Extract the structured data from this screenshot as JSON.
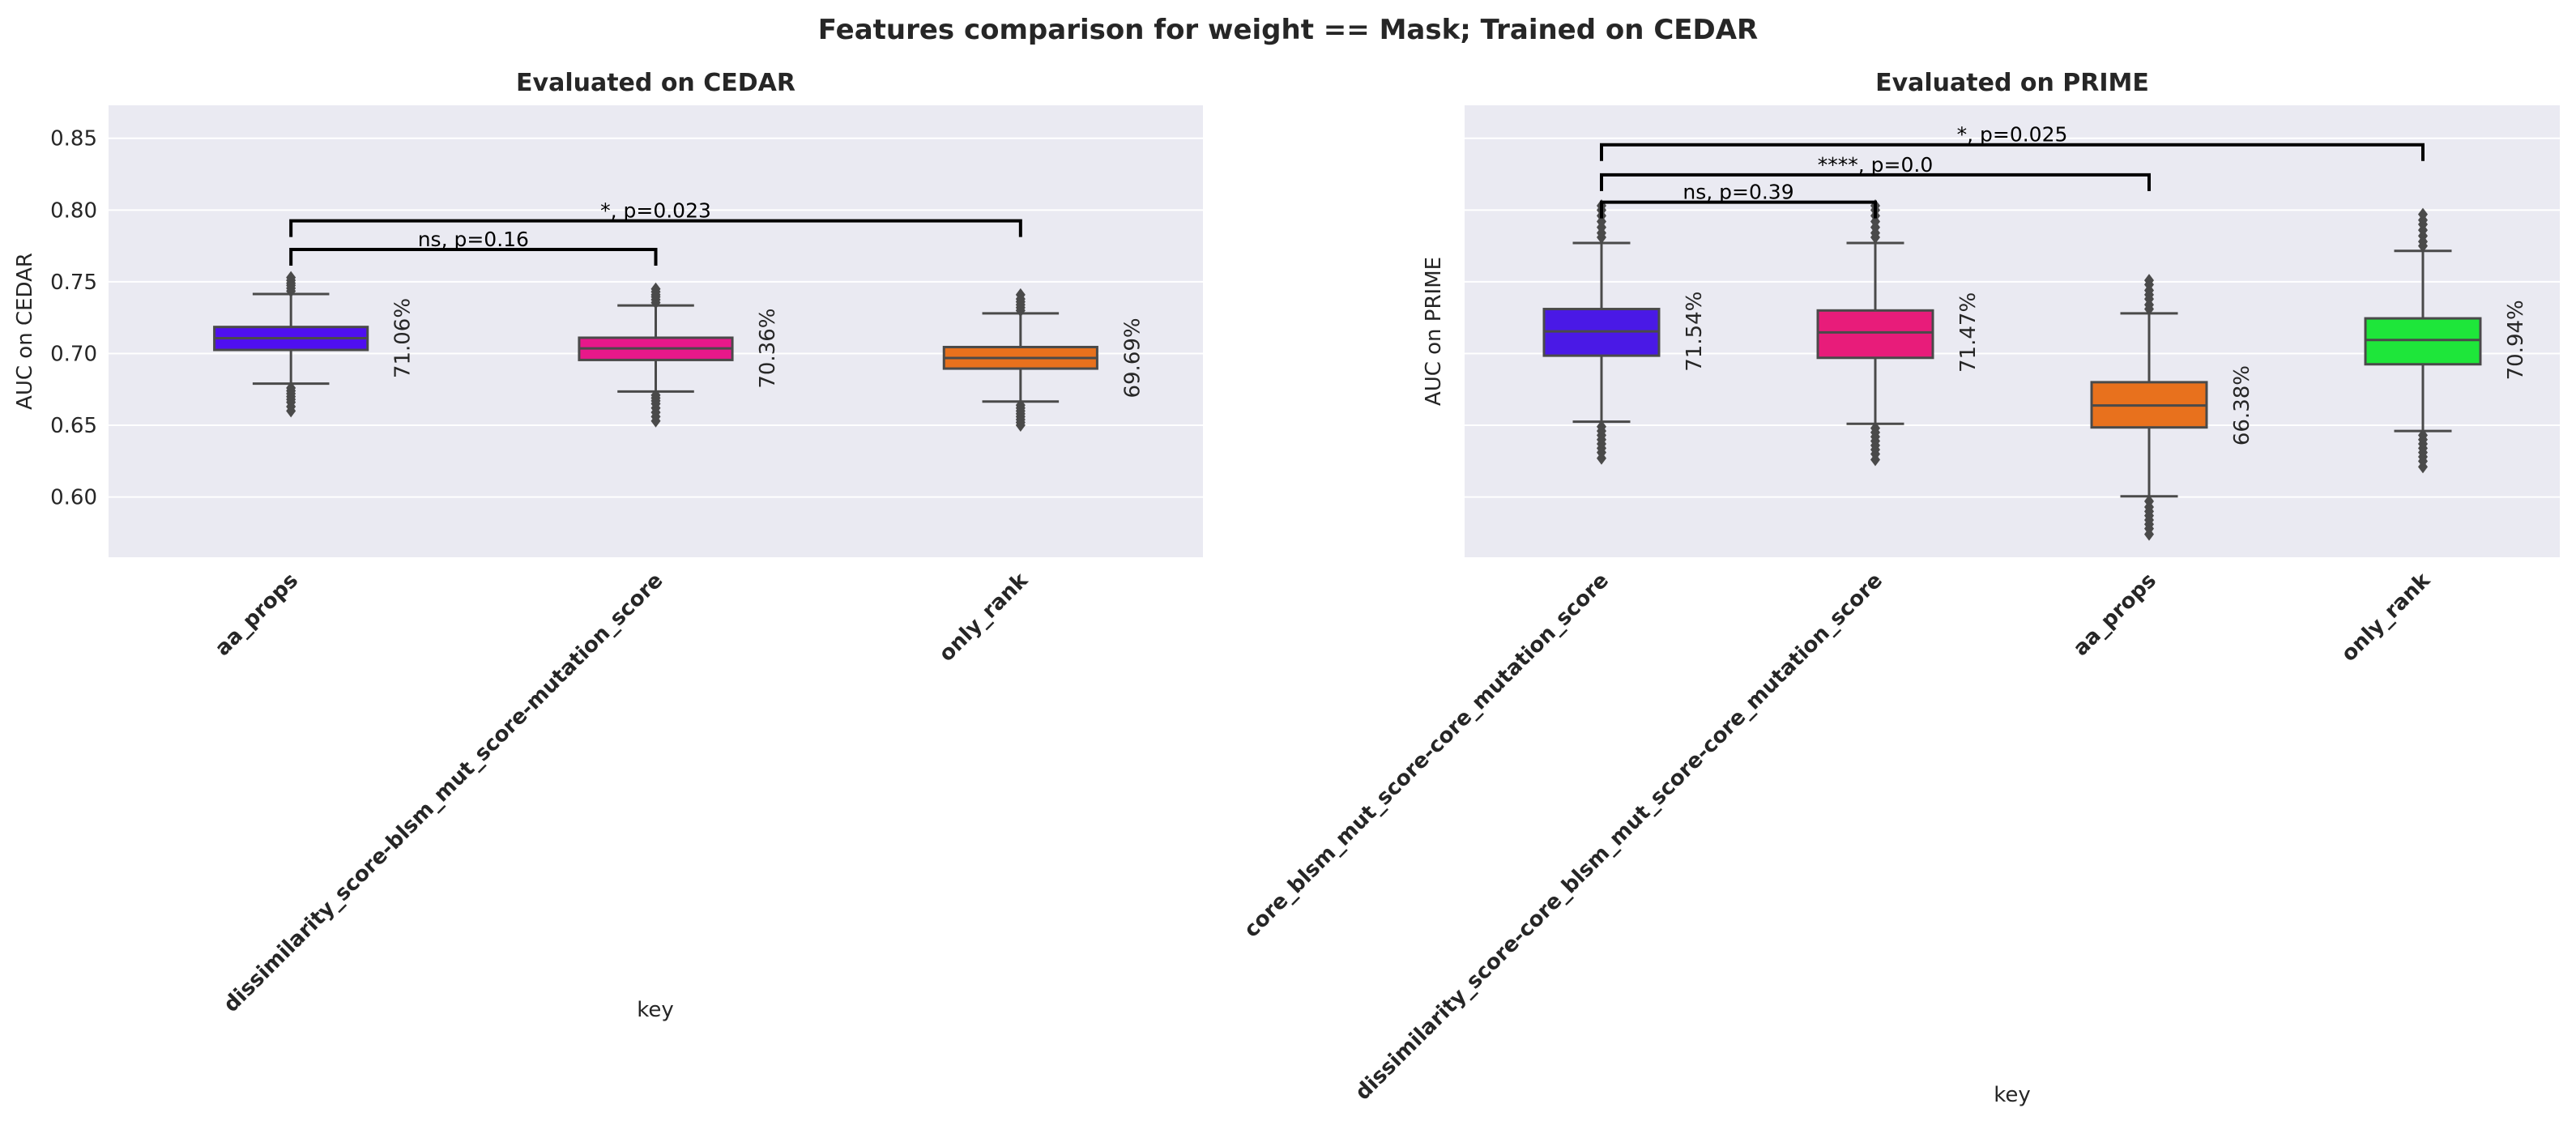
{
  "figure": {
    "suptitle": "Features comparison for weight == Mask; Trained on CEDAR"
  },
  "chart_data": [
    {
      "type": "box",
      "title": "Evaluated on CEDAR",
      "xlabel": "key",
      "ylabel": "AUC on CEDAR",
      "ylim": [
        0.558,
        0.873
      ],
      "yticks": [
        0.6,
        0.65,
        0.7,
        0.75,
        0.8,
        0.85
      ],
      "ytick_labels": [
        "0.60",
        "0.65",
        "0.70",
        "0.75",
        "0.80",
        "0.85"
      ],
      "grid": true,
      "categories": [
        "aa_props",
        "dissimilarity_score-blsm_mut_score-mutation_score",
        "only_rank"
      ],
      "boxes": [
        {
          "key": "aa_props",
          "color": "#4f0ff0",
          "q1": 0.7025,
          "median": 0.7107,
          "q3": 0.7185,
          "whisker_low": 0.679,
          "whisker_high": 0.7415,
          "fliers": [
            0.676,
            0.674,
            0.672,
            0.67,
            0.668,
            0.666,
            0.663,
            0.66,
            0.7435,
            0.7455,
            0.7475,
            0.749,
            0.751,
            0.753
          ],
          "label": "71.06%"
        },
        {
          "key": "dissimilarity_score-blsm_mut_score-mutation_score",
          "color": "#e8188a",
          "q1": 0.6955,
          "median": 0.7036,
          "q3": 0.711,
          "whisker_low": 0.6735,
          "whisker_high": 0.7335,
          "fliers": [
            0.671,
            0.669,
            0.667,
            0.665,
            0.662,
            0.659,
            0.656,
            0.653,
            0.7355,
            0.7375,
            0.7395,
            0.741,
            0.743,
            0.745
          ],
          "label": "70.36%"
        },
        {
          "key": "only_rank",
          "color": "#e8711d",
          "q1": 0.6895,
          "median": 0.6969,
          "q3": 0.7045,
          "whisker_low": 0.6665,
          "whisker_high": 0.728,
          "fliers": [
            0.664,
            0.662,
            0.66,
            0.658,
            0.656,
            0.654,
            0.652,
            0.65,
            0.73,
            0.732,
            0.734,
            0.736,
            0.738,
            0.741
          ],
          "label": "69.69%"
        }
      ],
      "annotations": [
        {
          "text": "ns, p=0.16",
          "from": 0,
          "to": 1,
          "y": 0.7725
        },
        {
          "text": "*, p=0.023",
          "from": 0,
          "to": 2,
          "y": 0.7925
        }
      ]
    },
    {
      "type": "box",
      "title": "Evaluated on PRIME",
      "xlabel": "key",
      "ylabel": "AUC on PRIME",
      "ylim": [
        0.558,
        0.873
      ],
      "yticks": [
        0.6,
        0.65,
        0.7,
        0.75,
        0.8,
        0.85
      ],
      "ytick_labels": [],
      "grid": true,
      "categories": [
        "core_blsm_mut_score-core_mutation_score",
        "dissimilarity_score-core_blsm_mut_score-core_mutation_score",
        "aa_props",
        "only_rank"
      ],
      "boxes": [
        {
          "key": "core_blsm_mut_score-core_mutation_score",
          "color": "#4a19e6",
          "q1": 0.6985,
          "median": 0.7154,
          "q3": 0.731,
          "whisker_low": 0.6525,
          "whisker_high": 0.777,
          "fliers": [
            0.649,
            0.646,
            0.643,
            0.64,
            0.637,
            0.634,
            0.631,
            0.627,
            0.781,
            0.784,
            0.788,
            0.792,
            0.796,
            0.8,
            0.803
          ],
          "label": "71.54%"
        },
        {
          "key": "dissimilarity_score-core_blsm_mut_score-core_mutation_score",
          "color": "#e81c7a",
          "q1": 0.697,
          "median": 0.7147,
          "q3": 0.73,
          "whisker_low": 0.651,
          "whisker_high": 0.777,
          "fliers": [
            0.648,
            0.645,
            0.642,
            0.639,
            0.636,
            0.633,
            0.63,
            0.626,
            0.781,
            0.784,
            0.788,
            0.792,
            0.796,
            0.8,
            0.803
          ],
          "label": "71.47%"
        },
        {
          "key": "aa_props",
          "color": "#e8711d",
          "q1": 0.6485,
          "median": 0.6638,
          "q3": 0.68,
          "whisker_low": 0.6005,
          "whisker_high": 0.728,
          "fliers": [
            0.597,
            0.593,
            0.59,
            0.587,
            0.584,
            0.581,
            0.578,
            0.574,
            0.731,
            0.734,
            0.738,
            0.741,
            0.744,
            0.748,
            0.751
          ],
          "label": "66.38%"
        },
        {
          "key": "only_rank",
          "color": "#1ee63a",
          "q1": 0.6925,
          "median": 0.7094,
          "q3": 0.7245,
          "whisker_low": 0.646,
          "whisker_high": 0.7715,
          "fliers": [
            0.643,
            0.64,
            0.637,
            0.634,
            0.631,
            0.628,
            0.625,
            0.621,
            0.775,
            0.778,
            0.782,
            0.786,
            0.79,
            0.793,
            0.797
          ],
          "label": "70.94%"
        }
      ],
      "annotations": [
        {
          "text": "ns, p=0.39",
          "from": 0,
          "to": 1,
          "y": 0.8055
        },
        {
          "text": "****, p=0.0",
          "from": 0,
          "to": 2,
          "y": 0.8245
        },
        {
          "text": "*, p=0.025",
          "from": 0,
          "to": 3,
          "y": 0.8455
        }
      ]
    }
  ]
}
